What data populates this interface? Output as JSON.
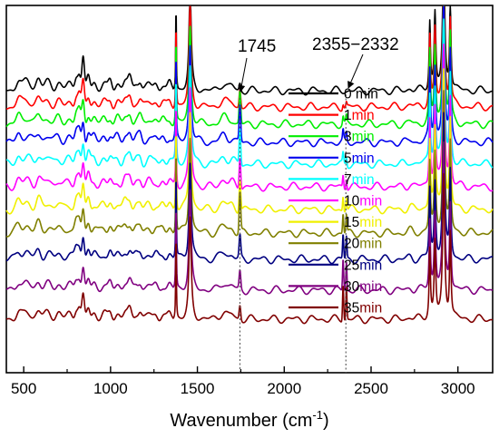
{
  "chart_data": {
    "type": "line",
    "title": "",
    "xlabel_main": "Wavenumber (cm",
    "xlabel_sup": "-1",
    "xlabel_close": ")",
    "ylabel": "",
    "xlim": [
      400,
      3200
    ],
    "xticks": [
      "500",
      "1000",
      "1500",
      "2000",
      "2500",
      "3000"
    ],
    "yticks_shown": false,
    "legend_position": "center-right",
    "annotations": [
      {
        "label": "1745",
        "x": 1745
      },
      {
        "label": "2355−2332",
        "x": 2355
      }
    ],
    "series": [
      {
        "name": "0 min",
        "name_prefix": "0",
        "name_suffix": " min",
        "color": "#000000",
        "carbonyl": 0.2,
        "co2": 0.0
      },
      {
        "name": "1min",
        "name_prefix": "1",
        "name_suffix": "min",
        "color": "#ff0000",
        "carbonyl": 0.5,
        "co2": 0.2
      },
      {
        "name": "3min",
        "name_prefix": "3",
        "name_suffix": "min",
        "color": "#00ee00",
        "carbonyl": 0.9,
        "co2": 0.3
      },
      {
        "name": "5min",
        "name_prefix": "5",
        "name_suffix": "min",
        "color": "#0000ee",
        "carbonyl": 1.0,
        "co2": 0.4
      },
      {
        "name": "7min",
        "name_prefix": "7",
        "name_suffix": "min",
        "color": "#00ffff",
        "carbonyl": 1.0,
        "co2": 0.4
      },
      {
        "name": "10min",
        "name_prefix": "10",
        "name_suffix": "min",
        "color": "#ff00ff",
        "carbonyl": 0.9,
        "co2": 0.5
      },
      {
        "name": "15min",
        "name_prefix": "15",
        "name_suffix": "min",
        "color": "#f0f000",
        "carbonyl": 0.9,
        "co2": 0.6
      },
      {
        "name": "20min",
        "name_prefix": "20",
        "name_suffix": "min",
        "color": "#808000",
        "carbonyl": 1.1,
        "co2": 0.8
      },
      {
        "name": "25min",
        "name_prefix": "25",
        "name_suffix": "min",
        "color": "#000080",
        "carbonyl": 0.6,
        "co2": 1.0
      },
      {
        "name": "30min",
        "name_prefix": "30",
        "name_suffix": "min",
        "color": "#800080",
        "carbonyl": 0.5,
        "co2": 1.3
      },
      {
        "name": "35min",
        "name_prefix": "35",
        "name_suffix": "min",
        "color": "#800000",
        "carbonyl": 0.4,
        "co2": 1.5
      }
    ]
  }
}
